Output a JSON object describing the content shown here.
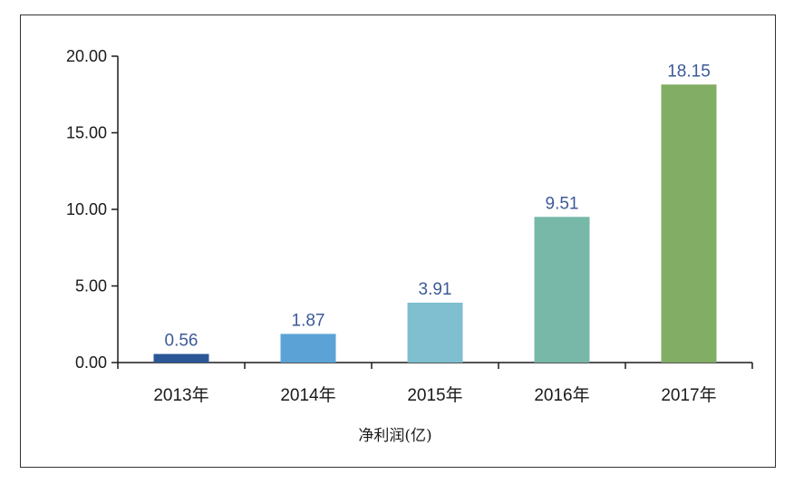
{
  "chart_data": {
    "type": "bar",
    "categories": [
      "2013年",
      "2014年",
      "2015年",
      "2016年",
      "2017年"
    ],
    "values": [
      0.56,
      1.87,
      3.91,
      9.51,
      18.15
    ],
    "data_labels": [
      "0.56",
      "1.87",
      "3.91",
      "9.51",
      "18.15"
    ],
    "colors": [
      "#2b5797",
      "#5ba3d6",
      "#7fbfcf",
      "#77b8a8",
      "#82ad64"
    ],
    "ylim": [
      0,
      20
    ],
    "yticks": [
      0,
      5,
      10,
      15,
      20
    ],
    "ytick_labels": [
      "0.00",
      "5.00",
      "10.00",
      "15.00",
      "20.00"
    ],
    "xlabel": "净利润(亿)",
    "grid": false
  }
}
